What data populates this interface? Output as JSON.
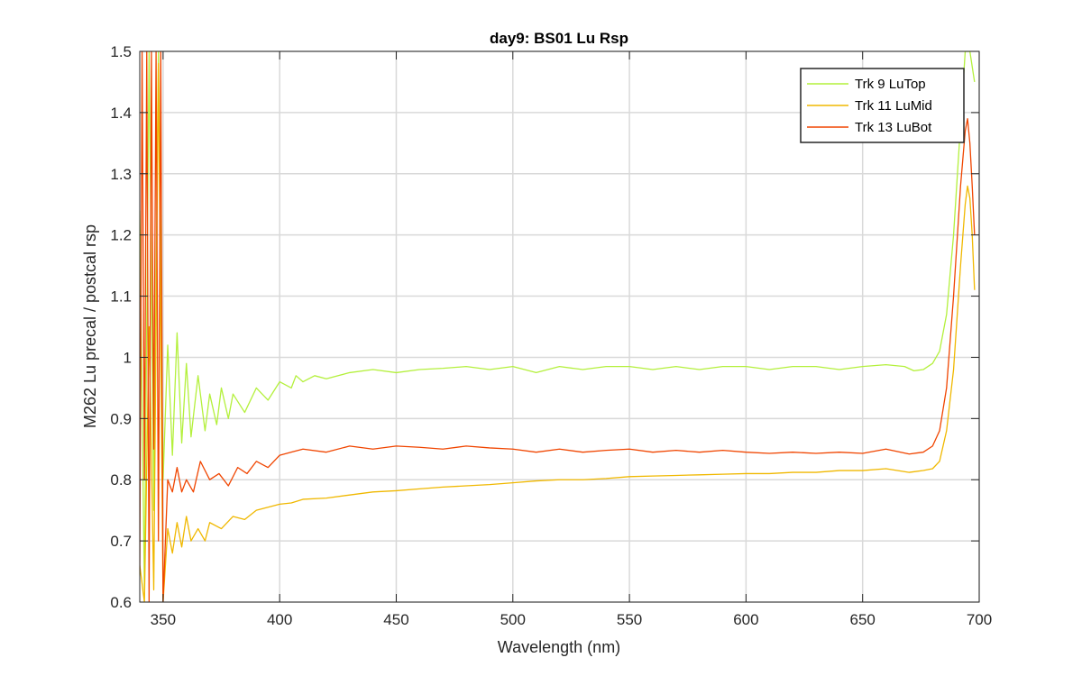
{
  "chart_data": {
    "type": "line",
    "title": "day9: BS01 Lu Rsp",
    "xlabel": "Wavelength (nm)",
    "ylabel": "M262 Lu precal / postcal rsp",
    "xlim": [
      340,
      700
    ],
    "ylim": [
      0.6,
      1.5
    ],
    "grid": true,
    "legend_location": "top-right",
    "x_ticks": [
      350,
      400,
      450,
      500,
      550,
      600,
      650,
      700
    ],
    "x_tick_labels": [
      "350",
      "400",
      "450",
      "500",
      "550",
      "600",
      "650",
      "700"
    ],
    "y_ticks": [
      0.6,
      0.7,
      0.8,
      0.9,
      1.0,
      1.1,
      1.2,
      1.3,
      1.4,
      1.5
    ],
    "y_tick_labels": [
      "0.6",
      "0.7",
      "0.8",
      "0.9",
      "1",
      "1.1",
      "1.2",
      "1.3",
      "1.4",
      "1.5"
    ],
    "series": [
      {
        "name": "Trk 9 LuTop",
        "color": "#b4f03c",
        "points": [
          [
            340,
            1.24
          ],
          [
            342,
            0.62
          ],
          [
            344,
            1.5
          ],
          [
            346,
            0.75
          ],
          [
            348,
            1.5
          ],
          [
            350,
            0.8
          ],
          [
            352,
            1.02
          ],
          [
            354,
            0.84
          ],
          [
            356,
            1.04
          ],
          [
            358,
            0.86
          ],
          [
            360,
            0.99
          ],
          [
            362,
            0.87
          ],
          [
            365,
            0.97
          ],
          [
            368,
            0.88
          ],
          [
            370,
            0.94
          ],
          [
            373,
            0.89
          ],
          [
            375,
            0.95
          ],
          [
            378,
            0.9
          ],
          [
            380,
            0.94
          ],
          [
            385,
            0.91
          ],
          [
            390,
            0.95
          ],
          [
            395,
            0.93
          ],
          [
            400,
            0.96
          ],
          [
            405,
            0.95
          ],
          [
            407,
            0.97
          ],
          [
            410,
            0.96
          ],
          [
            415,
            0.97
          ],
          [
            420,
            0.965
          ],
          [
            430,
            0.975
          ],
          [
            440,
            0.98
          ],
          [
            450,
            0.975
          ],
          [
            460,
            0.98
          ],
          [
            470,
            0.982
          ],
          [
            480,
            0.985
          ],
          [
            490,
            0.98
          ],
          [
            500,
            0.985
          ],
          [
            510,
            0.975
          ],
          [
            520,
            0.985
          ],
          [
            530,
            0.98
          ],
          [
            540,
            0.985
          ],
          [
            550,
            0.985
          ],
          [
            560,
            0.98
          ],
          [
            570,
            0.985
          ],
          [
            580,
            0.98
          ],
          [
            590,
            0.985
          ],
          [
            600,
            0.985
          ],
          [
            610,
            0.98
          ],
          [
            620,
            0.985
          ],
          [
            630,
            0.985
          ],
          [
            640,
            0.98
          ],
          [
            650,
            0.985
          ],
          [
            660,
            0.988
          ],
          [
            668,
            0.985
          ],
          [
            672,
            0.978
          ],
          [
            676,
            0.98
          ],
          [
            680,
            0.99
          ],
          [
            683,
            1.01
          ],
          [
            686,
            1.07
          ],
          [
            689,
            1.2
          ],
          [
            692,
            1.38
          ],
          [
            694,
            1.5
          ],
          [
            696,
            1.5
          ],
          [
            698,
            1.45
          ]
        ]
      },
      {
        "name": "Trk 11 LuMid",
        "color": "#f0b800",
        "points": [
          [
            340,
            0.66
          ],
          [
            342,
            0.6
          ],
          [
            344,
            1.05
          ],
          [
            346,
            0.62
          ],
          [
            348,
            1.48
          ],
          [
            350,
            0.6
          ],
          [
            352,
            0.72
          ],
          [
            354,
            0.68
          ],
          [
            356,
            0.73
          ],
          [
            358,
            0.69
          ],
          [
            360,
            0.74
          ],
          [
            362,
            0.7
          ],
          [
            365,
            0.72
          ],
          [
            368,
            0.7
          ],
          [
            370,
            0.73
          ],
          [
            375,
            0.72
          ],
          [
            380,
            0.74
          ],
          [
            385,
            0.735
          ],
          [
            390,
            0.75
          ],
          [
            395,
            0.755
          ],
          [
            400,
            0.76
          ],
          [
            405,
            0.762
          ],
          [
            410,
            0.768
          ],
          [
            420,
            0.77
          ],
          [
            430,
            0.775
          ],
          [
            440,
            0.78
          ],
          [
            450,
            0.782
          ],
          [
            460,
            0.785
          ],
          [
            470,
            0.788
          ],
          [
            480,
            0.79
          ],
          [
            490,
            0.792
          ],
          [
            500,
            0.795
          ],
          [
            510,
            0.798
          ],
          [
            520,
            0.8
          ],
          [
            530,
            0.8
          ],
          [
            540,
            0.802
          ],
          [
            550,
            0.805
          ],
          [
            560,
            0.806
          ],
          [
            570,
            0.807
          ],
          [
            580,
            0.808
          ],
          [
            590,
            0.809
          ],
          [
            600,
            0.81
          ],
          [
            610,
            0.81
          ],
          [
            620,
            0.812
          ],
          [
            630,
            0.812
          ],
          [
            640,
            0.815
          ],
          [
            650,
            0.815
          ],
          [
            660,
            0.818
          ],
          [
            670,
            0.812
          ],
          [
            676,
            0.815
          ],
          [
            680,
            0.818
          ],
          [
            683,
            0.83
          ],
          [
            686,
            0.88
          ],
          [
            689,
            0.98
          ],
          [
            692,
            1.15
          ],
          [
            694,
            1.25
          ],
          [
            695,
            1.28
          ],
          [
            696,
            1.26
          ],
          [
            697,
            1.2
          ],
          [
            698,
            1.11
          ]
        ]
      },
      {
        "name": "Trk 13 LuBot",
        "color": "#f04500",
        "points": [
          [
            340,
            0.65
          ],
          [
            341,
            1.5
          ],
          [
            342,
            0.8
          ],
          [
            343,
            1.5
          ],
          [
            344,
            0.6
          ],
          [
            345,
            1.5
          ],
          [
            346,
            0.85
          ],
          [
            347,
            1.5
          ],
          [
            348,
            0.7
          ],
          [
            349,
            1.5
          ],
          [
            350,
            0.6
          ],
          [
            352,
            0.8
          ],
          [
            354,
            0.78
          ],
          [
            356,
            0.82
          ],
          [
            358,
            0.78
          ],
          [
            360,
            0.8
          ],
          [
            363,
            0.78
          ],
          [
            366,
            0.83
          ],
          [
            370,
            0.8
          ],
          [
            374,
            0.81
          ],
          [
            378,
            0.79
          ],
          [
            382,
            0.82
          ],
          [
            386,
            0.81
          ],
          [
            390,
            0.83
          ],
          [
            395,
            0.82
          ],
          [
            400,
            0.84
          ],
          [
            405,
            0.845
          ],
          [
            410,
            0.85
          ],
          [
            420,
            0.845
          ],
          [
            430,
            0.855
          ],
          [
            440,
            0.85
          ],
          [
            450,
            0.855
          ],
          [
            460,
            0.853
          ],
          [
            470,
            0.85
          ],
          [
            480,
            0.855
          ],
          [
            490,
            0.852
          ],
          [
            500,
            0.85
          ],
          [
            510,
            0.845
          ],
          [
            520,
            0.85
          ],
          [
            530,
            0.845
          ],
          [
            540,
            0.848
          ],
          [
            550,
            0.85
          ],
          [
            560,
            0.845
          ],
          [
            570,
            0.848
          ],
          [
            580,
            0.845
          ],
          [
            590,
            0.848
          ],
          [
            600,
            0.845
          ],
          [
            610,
            0.843
          ],
          [
            620,
            0.845
          ],
          [
            630,
            0.843
          ],
          [
            640,
            0.845
          ],
          [
            650,
            0.843
          ],
          [
            660,
            0.85
          ],
          [
            670,
            0.842
          ],
          [
            676,
            0.845
          ],
          [
            680,
            0.855
          ],
          [
            683,
            0.88
          ],
          [
            686,
            0.95
          ],
          [
            689,
            1.1
          ],
          [
            692,
            1.28
          ],
          [
            694,
            1.37
          ],
          [
            695,
            1.39
          ],
          [
            696,
            1.35
          ],
          [
            697,
            1.28
          ],
          [
            698,
            1.2
          ]
        ]
      }
    ]
  }
}
